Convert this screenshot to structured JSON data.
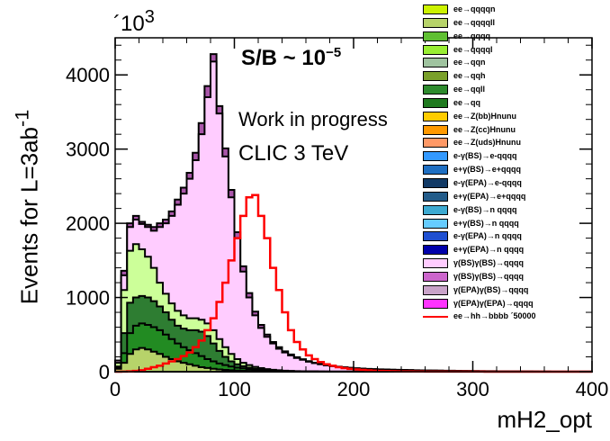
{
  "chart_data": {
    "type": "histogram",
    "annotations": {
      "sb": "S/B ~ 10",
      "sb_exp": "−5",
      "status": "Work in progress",
      "machine": "CLIC 3 TeV",
      "y_multiplier": "´10",
      "y_multiplier_exp": "3"
    },
    "xlabel": "mH2_opt",
    "ylabel": "Events for L=3ab",
    "ylabel_exp": "-1",
    "xlim": [
      0,
      400
    ],
    "ylim": [
      0,
      4500
    ],
    "x_ticks": [
      "0",
      "100",
      "200",
      "300",
      "400"
    ],
    "y_ticks": [
      "0",
      "1000",
      "2000",
      "3000",
      "4000"
    ],
    "x_tick_values": [
      0,
      100,
      200,
      300,
      400
    ],
    "y_tick_values": [
      0,
      1000,
      2000,
      3000,
      4000
    ],
    "bin_width": 5,
    "stack_order_note": "background cumulative envelopes, bottom to top",
    "stacked_background": [
      {
        "name": "ee→qqqqll",
        "color": "#b7d36a",
        "values": [
          40,
          120,
          240,
          300,
          320,
          300,
          270,
          240,
          200,
          170,
          140,
          120,
          100,
          80,
          60,
          50,
          40,
          30,
          25,
          20,
          15,
          12,
          10,
          8,
          6,
          5,
          4,
          3,
          2,
          2,
          1,
          1,
          1,
          1,
          1,
          0,
          0,
          0,
          0,
          0,
          0,
          0,
          0,
          0,
          0,
          0,
          0,
          0,
          0,
          0,
          0,
          0,
          0,
          0,
          0,
          0,
          0,
          0,
          0,
          0,
          0,
          0,
          0,
          0,
          0,
          0,
          0,
          0,
          0,
          0,
          0,
          0,
          0,
          0,
          0,
          0,
          0,
          0,
          0,
          0
        ]
      },
      {
        "name": "ee→qqqq",
        "color": "#228b22",
        "values": [
          60,
          250,
          520,
          620,
          650,
          630,
          600,
          560,
          500,
          440,
          380,
          330,
          290,
          250,
          210,
          170,
          140,
          110,
          90,
          70,
          55,
          45,
          35,
          28,
          22,
          17,
          13,
          10,
          8,
          6,
          5,
          4,
          3,
          3,
          2,
          2,
          1,
          1,
          1,
          1,
          1,
          0,
          0,
          0,
          0,
          0,
          0,
          0,
          0,
          0,
          0,
          0,
          0,
          0,
          0,
          0,
          0,
          0,
          0,
          0,
          0,
          0,
          0,
          0,
          0,
          0,
          0,
          0,
          0,
          0,
          0,
          0,
          0,
          0,
          0,
          0,
          0,
          0,
          0,
          0
        ]
      },
      {
        "name": "ee→qqll",
        "color": "#2e7d32",
        "values": [
          70,
          520,
          930,
          1000,
          1020,
          1000,
          950,
          880,
          800,
          700,
          620,
          580,
          560,
          560,
          540,
          480,
          380,
          280,
          200,
          140,
          100,
          75,
          55,
          40,
          30,
          22,
          16,
          12,
          9,
          7,
          5,
          4,
          3,
          3,
          2,
          2,
          1,
          1,
          1,
          1,
          1,
          0,
          0,
          0,
          0,
          0,
          0,
          0,
          0,
          0,
          0,
          0,
          0,
          0,
          0,
          0,
          0,
          0,
          0,
          0,
          0,
          0,
          0,
          0,
          0,
          0,
          0,
          0,
          0,
          0,
          0,
          0,
          0,
          0,
          0,
          0,
          0,
          0,
          0,
          0
        ]
      },
      {
        "name": "ee→qqqql",
        "color": "#ccff99",
        "values": [
          120,
          1100,
          1630,
          1720,
          1650,
          1550,
          1400,
          1200,
          1050,
          920,
          820,
          760,
          720,
          720,
          700,
          650,
          560,
          440,
          330,
          240,
          170,
          120,
          90,
          65,
          48,
          35,
          26,
          19,
          14,
          10,
          8,
          6,
          5,
          4,
          3,
          3,
          2,
          2,
          2,
          1,
          1,
          1,
          1,
          1,
          1,
          0,
          0,
          0,
          0,
          0,
          0,
          0,
          0,
          0,
          0,
          0,
          0,
          0,
          0,
          0,
          0,
          0,
          0,
          0,
          0,
          0,
          0,
          0,
          0,
          0,
          0,
          0,
          0,
          0,
          0,
          0,
          0,
          0,
          0,
          0
        ]
      },
      {
        "name": "γ(BS)γ(BS)→qqqq",
        "color": "#ffccff",
        "values": [
          150,
          1300,
          1950,
          2050,
          1990,
          1950,
          1900,
          1950,
          2000,
          2100,
          2250,
          2400,
          2600,
          2850,
          3200,
          3700,
          4180,
          3480,
          2900,
          2350,
          1800,
          1350,
          1000,
          760,
          590,
          470,
          380,
          310,
          260,
          220,
          185,
          160,
          135,
          115,
          100,
          85,
          75,
          65,
          57,
          50,
          44,
          40,
          36,
          33,
          30,
          28,
          26,
          24,
          22,
          20,
          18,
          16,
          15,
          14,
          13,
          12,
          11,
          10,
          9,
          8,
          8,
          7,
          6,
          6,
          5,
          5,
          4,
          4,
          3,
          3,
          3,
          2,
          2,
          2,
          2,
          1,
          1,
          1,
          1,
          1
        ]
      },
      {
        "name": "γ(BS)γ(BS)→qqqq total",
        "color": "#a855a8",
        "values": [
          150,
          1360,
          2000,
          2100,
          2020,
          1980,
          1950,
          2000,
          2050,
          2160,
          2320,
          2480,
          2680,
          2950,
          3350,
          3850,
          4280,
          3580,
          3010,
          2450,
          1880,
          1420,
          1060,
          810,
          630,
          500,
          400,
          330,
          275,
          232,
          195,
          168,
          142,
          121,
          105,
          89,
          78,
          68,
          60,
          53,
          47,
          42,
          38,
          35,
          32,
          30,
          28,
          26,
          24,
          22,
          20,
          18,
          17,
          16,
          15,
          14,
          13,
          12,
          11,
          10,
          9,
          8,
          7,
          7,
          6,
          6,
          5,
          5,
          4,
          4,
          3,
          3,
          3,
          2,
          2,
          2,
          1,
          1,
          1,
          1
        ]
      }
    ],
    "signal": {
      "name": "ee→hh→bbbb ´50000",
      "color": "#ff0000",
      "values": [
        0,
        2,
        5,
        10,
        20,
        40,
        60,
        80,
        110,
        140,
        170,
        210,
        260,
        330,
        420,
        560,
        720,
        940,
        1200,
        1500,
        1800,
        2100,
        2350,
        2380,
        2100,
        1800,
        1400,
        1100,
        800,
        560,
        400,
        300,
        220,
        170,
        130,
        100,
        80,
        60,
        48,
        38,
        30,
        24,
        18,
        14,
        11,
        9,
        7,
        6,
        5,
        4,
        3,
        3,
        2,
        2,
        2,
        1,
        1,
        1,
        1,
        1,
        1,
        1,
        0,
        0,
        0,
        0,
        0,
        0,
        0,
        0,
        0,
        0,
        0,
        0,
        0,
        0,
        0,
        0,
        0,
        0
      ]
    },
    "legend": [
      {
        "label": "ee→qqqqn",
        "color": "#ccf200",
        "type": "box"
      },
      {
        "label": "ee→qqqqll",
        "color": "#b7d36a",
        "type": "box"
      },
      {
        "label": "ee→qqqq",
        "color": "#5fbf32",
        "type": "box"
      },
      {
        "label": "ee→qqqql",
        "color": "#99ee33",
        "type": "box"
      },
      {
        "label": "ee→qqn",
        "color": "#9fc39f",
        "type": "box"
      },
      {
        "label": "ee→qqh",
        "color": "#7aa02a",
        "type": "box"
      },
      {
        "label": "ee→qqll",
        "color": "#2e8b2e",
        "type": "box"
      },
      {
        "label": "ee→qq",
        "color": "#1f7a1f",
        "type": "box"
      },
      {
        "label": "ee→Z(bb)Hnunu",
        "color": "#ffcc00",
        "type": "box"
      },
      {
        "label": "ee→Z(cc)Hnunu",
        "color": "#ff9900",
        "type": "box"
      },
      {
        "label": "ee→Z(uds)Hnunu",
        "color": "#ff9966",
        "type": "box"
      },
      {
        "label": "e-γ(BS)→e-qqqq",
        "color": "#3399ff",
        "type": "box"
      },
      {
        "label": "e+γ(BS)→e+qqqq",
        "color": "#1f6fc2",
        "type": "box"
      },
      {
        "label": "e-γ(EPA)→e-qqqq",
        "color": "#123a66",
        "type": "box"
      },
      {
        "label": "e+γ(EPA)→e+qqqq",
        "color": "#235c8a",
        "type": "box"
      },
      {
        "label": "e-γ(BS)→n qqqq",
        "color": "#3daad1",
        "type": "box"
      },
      {
        "label": "e+γ(BS)→n qqqq",
        "color": "#66ccff",
        "type": "box"
      },
      {
        "label": "e-γ(EPA)→n qqqq",
        "color": "#1f4fd1",
        "type": "box"
      },
      {
        "label": "e+γ(EPA)→n qqqq",
        "color": "#0000aa",
        "type": "box"
      },
      {
        "label": "γ(BS)γ(BS)→qqqq",
        "color": "#ffccff",
        "type": "box"
      },
      {
        "label": "γ(BS)γ(BS)→qqqq",
        "color": "#cc66cc",
        "type": "box"
      },
      {
        "label": "γ(EPA)γ(BS)→qqqq",
        "color": "#c9a3c9",
        "type": "box"
      },
      {
        "label": "γ(EPA)γ(EPA)→qqqq",
        "color": "#ff33ff",
        "type": "box"
      },
      {
        "label": "ee→hh→bbbb ´50000",
        "color": "#ff0000",
        "type": "line"
      }
    ]
  }
}
